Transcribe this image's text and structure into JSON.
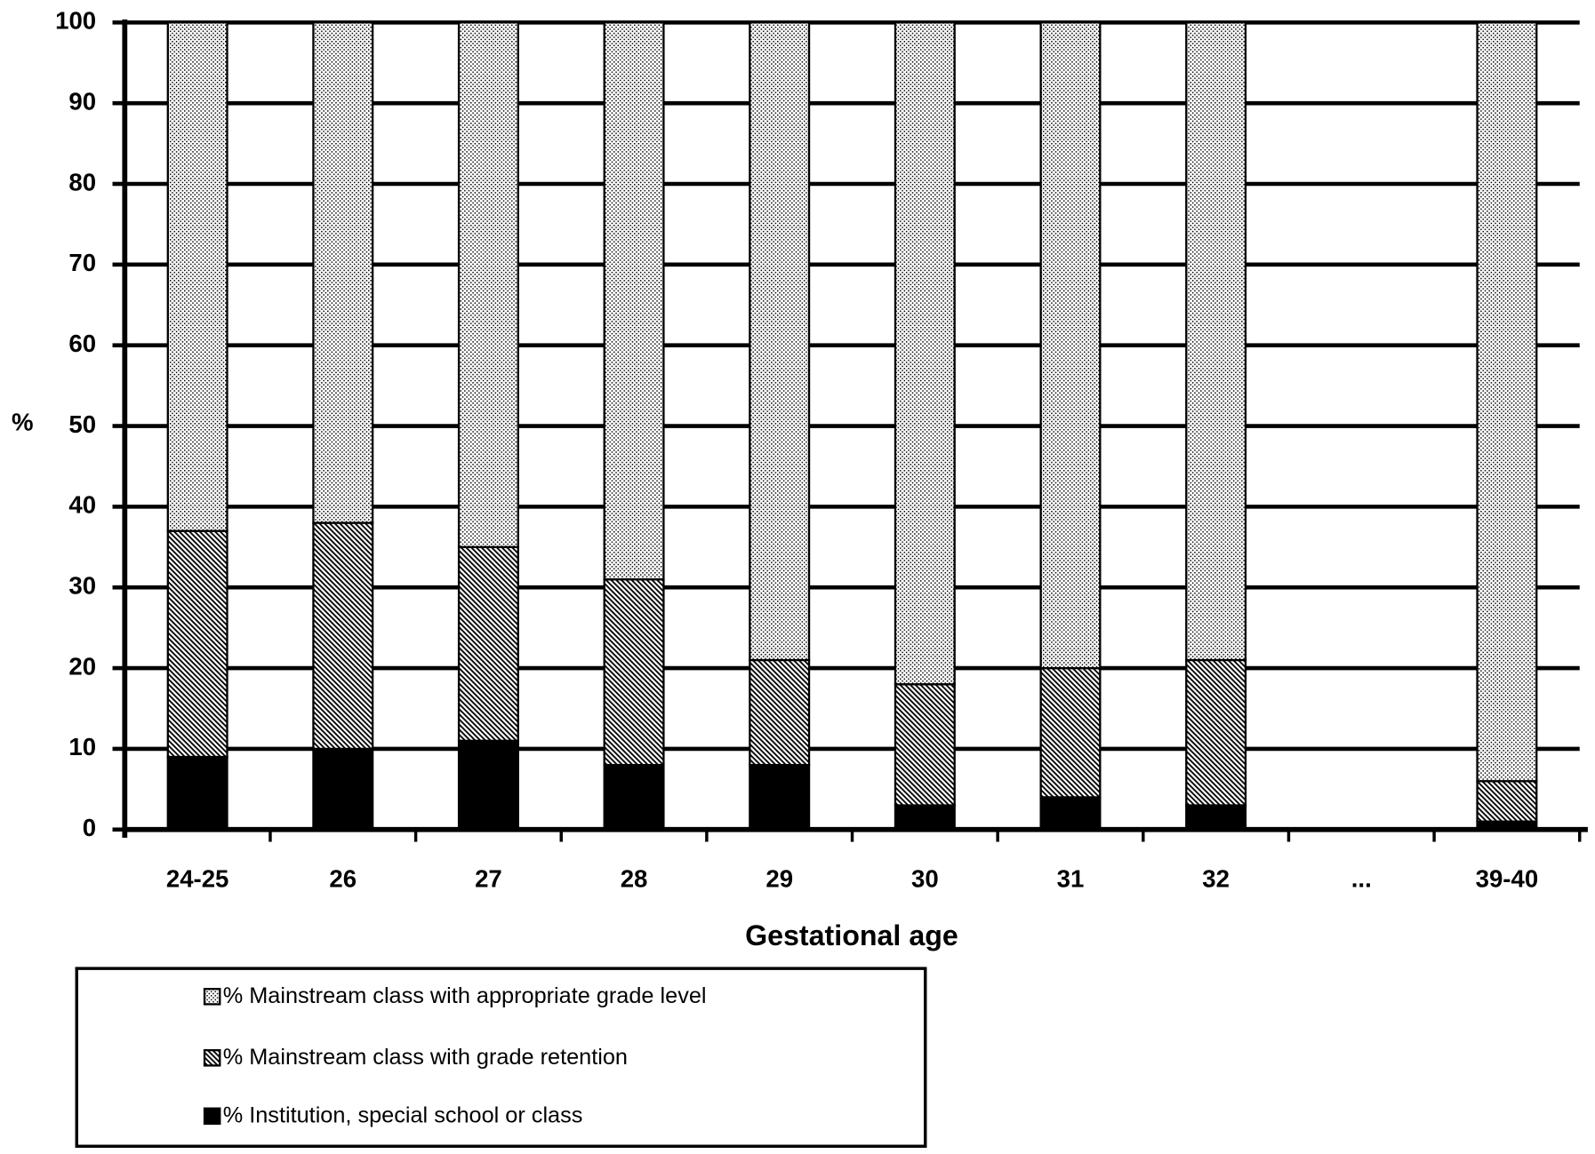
{
  "chart_data": {
    "type": "stacked_bar",
    "categories": [
      "24-25",
      "26",
      "27",
      "28",
      "29",
      "30",
      "31",
      "32",
      "...",
      "39-40"
    ],
    "series": [
      {
        "name": "% Mainstream class with appropriate grade level",
        "color": "#000000",
        "pattern": "dots",
        "values": [
          63,
          62,
          65,
          69,
          79,
          82,
          80,
          79,
          null,
          94
        ]
      },
      {
        "name": "% Mainstream class with grade retention",
        "color": "#000000",
        "pattern": "hatch",
        "values": [
          28,
          28,
          24,
          23,
          13,
          15,
          16,
          18,
          null,
          5
        ]
      },
      {
        "name": "% Institution, special school or class",
        "color": "#000000",
        "pattern": "solid",
        "values": [
          9,
          10,
          11,
          8,
          8,
          3,
          4,
          3,
          null,
          1
        ]
      }
    ],
    "ylabel": "%",
    "xlabel": "Gestational age",
    "ylim": [
      0,
      100
    ],
    "yticks": [
      0,
      10,
      20,
      30,
      40,
      50,
      60,
      70,
      80,
      90,
      100
    ],
    "grid": true,
    "legend": "bottom"
  }
}
